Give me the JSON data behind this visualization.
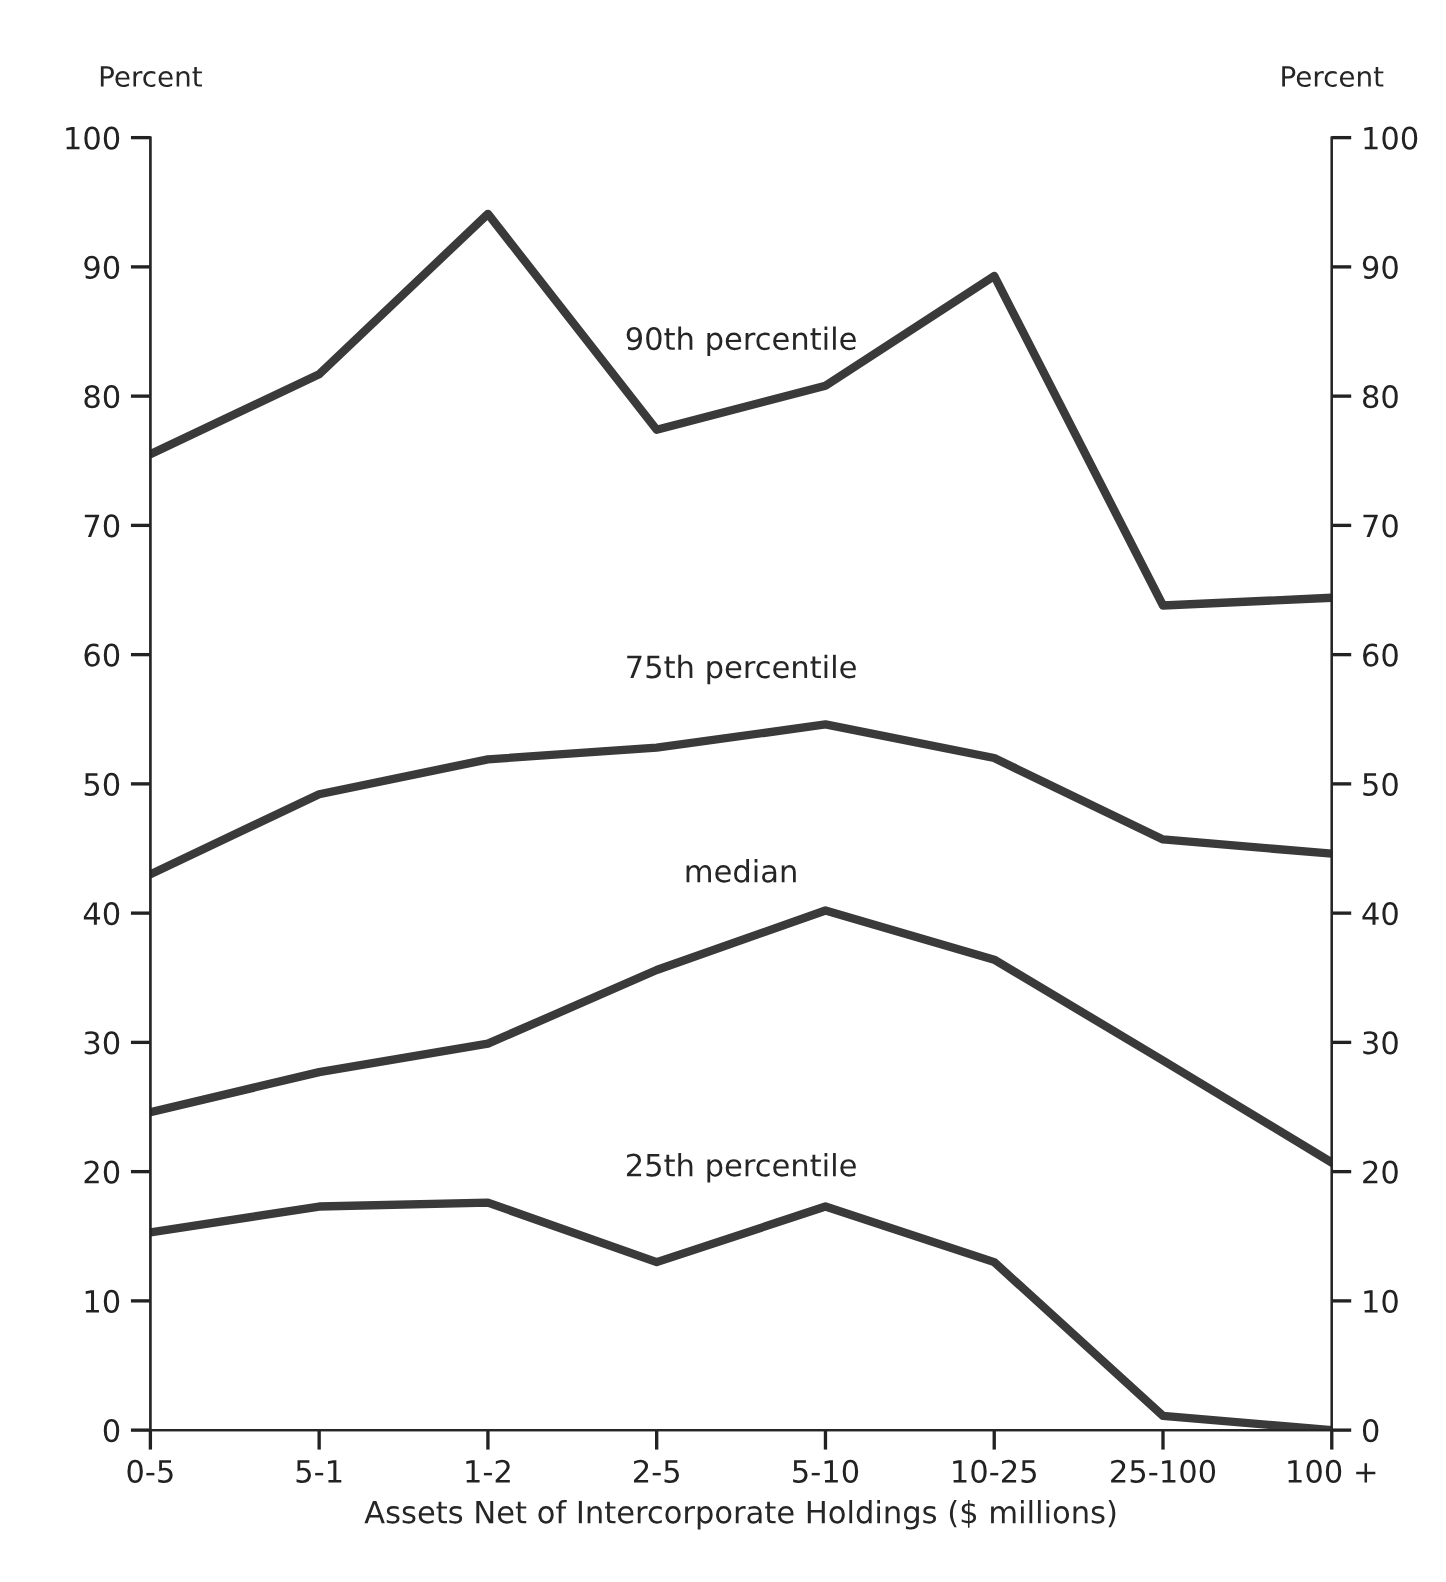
{
  "chart_data": {
    "type": "line",
    "ylabel": "Percent",
    "y2label": "Percent",
    "xlabel": "Assets Net of Intercorporate Holdings ($ millions)",
    "categories": [
      "0-5",
      "5-1",
      "1-2",
      "2-5",
      "5-10",
      "10-25",
      "25-100",
      "100 +"
    ],
    "series": [
      {
        "name": "90th percentile",
        "color": "#3a3a3a",
        "values": [
          75.5,
          81.7,
          94.1,
          77.4,
          80.8,
          89.3,
          63.8,
          64.4
        ]
      },
      {
        "name": "75th percentile",
        "color": "#3a3a3a",
        "values": [
          43.0,
          49.2,
          51.9,
          52.8,
          54.6,
          52.0,
          45.7,
          44.6
        ]
      },
      {
        "name": "median",
        "color": "#3a3a3a",
        "values": [
          24.6,
          27.7,
          29.9,
          35.6,
          40.2,
          36.4,
          28.6,
          20.7
        ]
      },
      {
        "name": "25th percentile",
        "color": "#3a3a3a",
        "values": [
          15.3,
          17.3,
          17.6,
          13.0,
          17.3,
          13.0,
          1.1,
          0
        ]
      }
    ],
    "ylim": [
      0,
      100
    ],
    "yticks": [
      0,
      10,
      20,
      30,
      40,
      50,
      60,
      70,
      80,
      90,
      100
    ],
    "y2lim": [
      0,
      100
    ],
    "y2ticks": [
      0,
      10,
      20,
      30,
      40,
      50,
      60,
      70,
      80,
      90,
      100
    ],
    "grid": false,
    "marker": "none",
    "line_style": "solid"
  }
}
